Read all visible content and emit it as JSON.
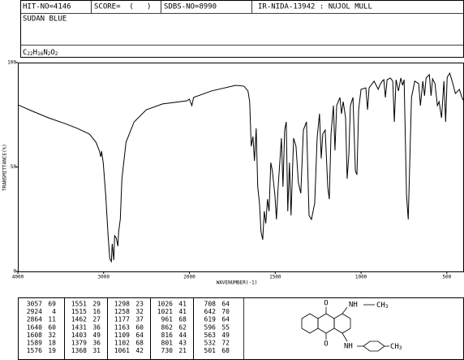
{
  "header": {
    "hit": "HIT-NO=4146",
    "score": "SCORE=  (   )",
    "sdbs": "SDBS-NO=8990",
    "ir": "IR-NIDA-13942 : NUJOL MULL",
    "name": "SUDAN BLUE",
    "formula": [
      {
        "el": "C",
        "n": "22"
      },
      {
        "el": "H",
        "n": "16"
      },
      {
        "el": "N",
        "n": "2"
      },
      {
        "el": "O",
        "n": "2"
      }
    ]
  },
  "chart_data": {
    "type": "line",
    "color": "#000000",
    "x_label": "WAVENUMBER(-1)",
    "y_label": "TRANSMITTANCE(%)",
    "xlim": [
      4000,
      400
    ],
    "x_break": 2000,
    "x_break_factor": 2,
    "ylim": [
      0,
      100
    ],
    "xticks": [
      4000,
      3000,
      2000,
      1500,
      1000,
      500
    ],
    "yticks": [
      0,
      50,
      100
    ],
    "x": [
      4000,
      3829,
      3640,
      3450,
      3308,
      3166,
      3090,
      3052,
      3033,
      3024,
      3005,
      2976,
      2948,
      2929,
      2910,
      2900,
      2882,
      2872,
      2853,
      2834,
      2825,
      2806,
      2787,
      2739,
      2645,
      2502,
      2313,
      2028,
      2000,
      1986,
      1976,
      1872,
      1730,
      1682,
      1659,
      1649,
      1640,
      1630,
      1621,
      1611,
      1602,
      1592,
      1583,
      1573,
      1564,
      1555,
      1545,
      1536,
      1526,
      1517,
      1502,
      1493,
      1483,
      1464,
      1455,
      1445,
      1436,
      1427,
      1417,
      1408,
      1393,
      1379,
      1365,
      1351,
      1336,
      1318,
      1303,
      1289,
      1270,
      1256,
      1242,
      1232,
      1223,
      1209,
      1194,
      1185,
      1175,
      1161,
      1152,
      1142,
      1123,
      1114,
      1104,
      1090,
      1081,
      1071,
      1062,
      1047,
      1033,
      1024,
      1014,
      1000,
      972,
      962,
      953,
      924,
      900,
      891,
      877,
      867,
      858,
      848,
      829,
      815,
      806,
      796,
      782,
      768,
      758,
      749,
      735,
      725,
      716,
      706,
      687,
      664,
      654,
      640,
      630,
      621,
      602,
      592,
      583,
      569,
      555,
      545,
      531,
      517,
      507,
      498,
      483,
      469,
      450,
      427,
      412,
      400
    ],
    "values": [
      79.8,
      76.7,
      73.5,
      70.8,
      68.5,
      65.8,
      61.9,
      58,
      54.9,
      57.6,
      52.1,
      36.6,
      17.1,
      6.2,
      4.7,
      13.2,
      5.4,
      17.1,
      16,
      12.1,
      19.1,
      24.9,
      44.4,
      61.9,
      71.6,
      77.4,
      80.2,
      81.7,
      82.5,
      79.4,
      83.3,
      86.4,
      89.1,
      88.7,
      86.4,
      81.3,
      59.9,
      64.6,
      52.9,
      68.5,
      40.5,
      32.7,
      19.1,
      15.2,
      28.8,
      23,
      34.6,
      28.8,
      52.1,
      48.2,
      36.6,
      24.9,
      40.5,
      63.8,
      40.5,
      67.7,
      71.6,
      28.8,
      52.1,
      26.8,
      63.8,
      59.9,
      42.4,
      37.4,
      67.7,
      71.6,
      26.8,
      24.9,
      32.7,
      63.8,
      75.5,
      54.1,
      65.8,
      67.7,
      40.5,
      34.6,
      65.8,
      79.4,
      58,
      79.4,
      83.3,
      75.5,
      81.3,
      73.5,
      44.4,
      56,
      79.4,
      83.3,
      48.2,
      46.3,
      77.4,
      87.2,
      87.9,
      77.4,
      87.9,
      91.1,
      87.2,
      89.1,
      91.1,
      91.8,
      83.3,
      91.8,
      92.6,
      91.1,
      71.6,
      91.8,
      86.4,
      92.6,
      89.1,
      91.8,
      36.6,
      24.9,
      52.1,
      83.3,
      91.1,
      89.9,
      79.4,
      91.1,
      84.1,
      92.6,
      94.2,
      84.1,
      92.2,
      89.9,
      79.4,
      81.3,
      73.5,
      91.1,
      71.6,
      93,
      94.9,
      91.1,
      85.2,
      87.2,
      83.3,
      81.3
    ]
  },
  "peak_table": {
    "columns": [
      [
        [
          3057,
          69
        ],
        [
          2924,
          4
        ],
        [
          2864,
          11
        ],
        [
          1640,
          60
        ],
        [
          1608,
          32
        ],
        [
          1589,
          18
        ],
        [
          1576,
          19
        ]
      ],
      [
        [
          1551,
          29
        ],
        [
          1515,
          16
        ],
        [
          1462,
          27
        ],
        [
          1431,
          36
        ],
        [
          1403,
          49
        ],
        [
          1379,
          36
        ],
        [
          1368,
          31
        ]
      ],
      [
        [
          1298,
          23
        ],
        [
          1258,
          32
        ],
        [
          1177,
          37
        ],
        [
          1163,
          60
        ],
        [
          1109,
          64
        ],
        [
          1102,
          68
        ],
        [
          1061,
          42
        ]
      ],
      [
        [
          1026,
          41
        ],
        [
          1021,
          41
        ],
        [
          961,
          68
        ],
        [
          862,
          62
        ],
        [
          816,
          44
        ],
        [
          801,
          43
        ],
        [
          730,
          21
        ]
      ],
      [
        [
          708,
          64
        ],
        [
          642,
          70
        ],
        [
          619,
          64
        ],
        [
          596,
          55
        ],
        [
          563,
          49
        ],
        [
          532,
          72
        ],
        [
          501,
          68
        ]
      ]
    ]
  },
  "structure": {
    "o_top": "O",
    "o_bottom": "O",
    "nh_top": "NH",
    "nh_bottom": "NH",
    "ch3_top": {
      "el": "CH",
      "n": "3"
    },
    "ch3_bottom": {
      "el": "CH",
      "n": "3"
    }
  }
}
